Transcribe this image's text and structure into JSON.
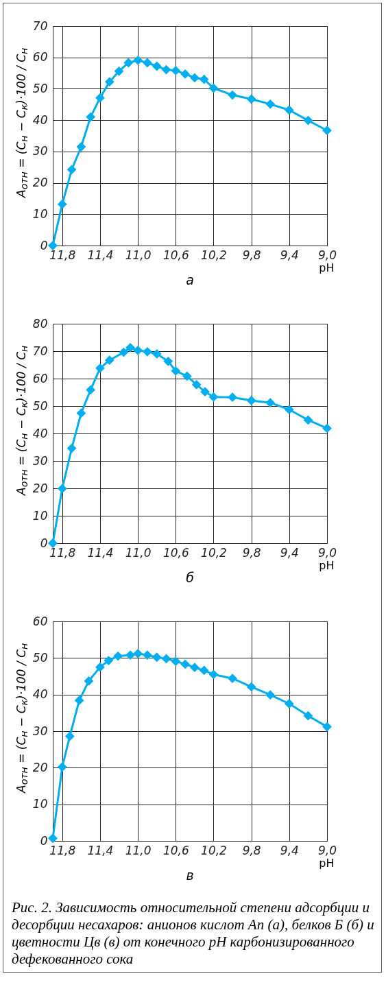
{
  "chart_data": [
    {
      "type": "line",
      "title": "а",
      "xlabel": "pH",
      "ylabel": "A$_{отн}$ = (C$_{н}$ − C$_{к}$)·100 / C$_{н}$",
      "x": [
        11.9,
        11.8,
        11.7,
        11.6,
        11.5,
        11.4,
        11.3,
        11.2,
        11.1,
        11.0,
        10.9,
        10.8,
        10.7,
        10.6,
        10.5,
        10.4,
        10.3,
        10.2,
        10.0,
        9.8,
        9.6,
        9.4,
        9.2,
        9.0
      ],
      "series": [
        {
          "color": "#00aeef",
          "values": [
            0,
            13.2,
            24.2,
            31.5,
            41.0,
            47.1,
            52.2,
            55.6,
            58.3,
            59.1,
            58.3,
            57.2,
            56.1,
            55.8,
            54.7,
            53.5,
            53.0,
            50.2,
            48.0,
            46.7,
            45.1,
            43.2,
            39.9,
            36.7
          ]
        }
      ],
      "xlim": [
        11.9,
        9.0
      ],
      "xticks": [
        {
          "value": 11.8,
          "label": "11,8"
        },
        {
          "value": 11.4,
          "label": "11,4"
        },
        {
          "value": 11.0,
          "label": "11,0"
        },
        {
          "value": 10.6,
          "label": "10,6"
        },
        {
          "value": 10.2,
          "label": "10,2"
        },
        {
          "value": 9.8,
          "label": "9,8"
        },
        {
          "value": 9.4,
          "label": "9,4"
        },
        {
          "value": 9.0,
          "label": "9,0"
        }
      ],
      "ylim": [
        0,
        70
      ],
      "yticks": [
        0,
        10,
        20,
        30,
        40,
        50,
        60,
        70
      ],
      "grid": true,
      "marker": "diamond",
      "line_style": "solid"
    },
    {
      "type": "line",
      "title": "б",
      "xlabel": "pH",
      "ylabel": "A$_{отн}$ = (C$_{н}$ − C$_{к}$)·100 / C$_{н}$",
      "x": [
        11.9,
        11.8,
        11.7,
        11.6,
        11.5,
        11.4,
        11.3,
        11.15,
        11.08,
        11.0,
        10.9,
        10.8,
        10.68,
        10.6,
        10.48,
        10.38,
        10.29,
        10.2,
        10.0,
        9.8,
        9.6,
        9.4,
        9.2,
        9.0
      ],
      "series": [
        {
          "color": "#00aeef",
          "values": [
            0,
            19.9,
            34.6,
            47.4,
            55.9,
            63.8,
            66.7,
            69.6,
            71.3,
            70.3,
            69.8,
            69.0,
            66.3,
            62.8,
            60.9,
            57.8,
            55.2,
            53.3,
            53.2,
            52.0,
            51.2,
            48.7,
            44.9,
            41.9
          ]
        }
      ],
      "xlim": [
        11.9,
        9.0
      ],
      "xticks": [
        {
          "value": 11.8,
          "label": "11,8"
        },
        {
          "value": 11.4,
          "label": "11,4"
        },
        {
          "value": 11.0,
          "label": "11,0"
        },
        {
          "value": 10.6,
          "label": "10,6"
        },
        {
          "value": 10.2,
          "label": "10,2"
        },
        {
          "value": 9.8,
          "label": "9,8"
        },
        {
          "value": 9.4,
          "label": "9,4"
        },
        {
          "value": 9.0,
          "label": "9,0"
        }
      ],
      "ylim": [
        0,
        80
      ],
      "yticks": [
        0,
        10,
        20,
        30,
        40,
        50,
        60,
        70,
        80
      ],
      "grid": true,
      "marker": "diamond",
      "line_style": "solid"
    },
    {
      "type": "line",
      "title": "в",
      "xlabel": "pH",
      "ylabel": "A$_{отн}$ = (C$_{н}$ − C$_{к}$)·100 / C$_{н}$",
      "x": [
        11.9,
        11.8,
        11.72,
        11.62,
        11.52,
        11.4,
        11.31,
        11.21,
        11.08,
        11.0,
        10.9,
        10.8,
        10.7,
        10.6,
        10.5,
        10.4,
        10.3,
        10.2,
        10.0,
        9.8,
        9.6,
        9.4,
        9.2,
        9.0
      ],
      "series": [
        {
          "color": "#00aeef",
          "values": [
            0.7,
            20.2,
            28.6,
            38.4,
            43.7,
            47.5,
            49.3,
            50.5,
            50.8,
            51.2,
            50.8,
            50.2,
            49.8,
            49.1,
            48.3,
            47.4,
            46.6,
            45.5,
            44.4,
            42.1,
            39.9,
            37.5,
            34.2,
            31.2
          ]
        }
      ],
      "xlim": [
        11.9,
        9.0
      ],
      "xticks": [
        {
          "value": 11.8,
          "label": "11,8"
        },
        {
          "value": 11.4,
          "label": "11,4"
        },
        {
          "value": 11.0,
          "label": "11,0"
        },
        {
          "value": 10.6,
          "label": "10,6"
        },
        {
          "value": 10.2,
          "label": "10,2"
        },
        {
          "value": 9.8,
          "label": "9,8"
        },
        {
          "value": 9.4,
          "label": "9,4"
        },
        {
          "value": 9.0,
          "label": "9,0"
        }
      ],
      "ylim": [
        0,
        60
      ],
      "yticks": [
        0,
        10,
        20,
        30,
        40,
        50,
        60
      ],
      "grid": true,
      "marker": "diamond",
      "line_style": "solid",
      "annotations": [
        "Рис. 2. Зависимость относительной степени адсорбции и десорбции несахаров: анионов кислот Аn (а), белков Б (б) и цветности Цв (в) от конечного pH карбонизированного дефекованного сока"
      ]
    }
  ]
}
